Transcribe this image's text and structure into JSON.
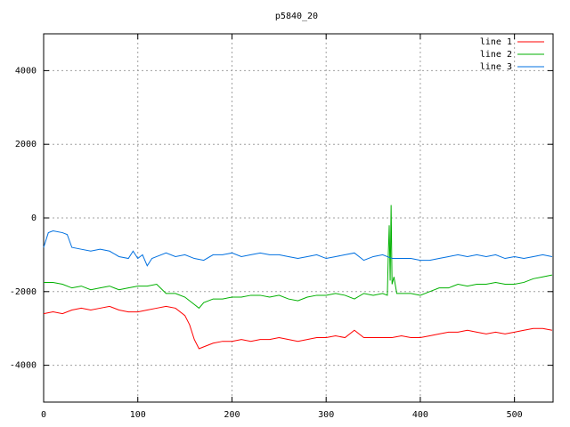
{
  "chart_data": {
    "type": "line",
    "title": "p5840_20",
    "xlim": [
      0,
      541
    ],
    "ylim": [
      -5000,
      5000
    ],
    "xticks": [
      0,
      100,
      200,
      300,
      400,
      500
    ],
    "yticks": [
      -4000,
      -2000,
      0,
      2000,
      4000
    ],
    "grid": true,
    "legend": "top-right",
    "series": [
      {
        "name": "line 1",
        "color": "#ff0000",
        "x": [
          0,
          10,
          20,
          30,
          40,
          50,
          60,
          70,
          80,
          90,
          100,
          110,
          120,
          130,
          140,
          150,
          155,
          160,
          165,
          170,
          180,
          190,
          200,
          210,
          220,
          230,
          240,
          250,
          260,
          270,
          280,
          290,
          300,
          310,
          320,
          330,
          340,
          350,
          360,
          370,
          380,
          390,
          400,
          410,
          420,
          430,
          440,
          450,
          460,
          470,
          480,
          490,
          500,
          510,
          520,
          530,
          540
        ],
        "values": [
          -2600,
          -2550,
          -2600,
          -2500,
          -2450,
          -2500,
          -2450,
          -2400,
          -2500,
          -2550,
          -2550,
          -2500,
          -2450,
          -2400,
          -2450,
          -2650,
          -2900,
          -3300,
          -3550,
          -3500,
          -3400,
          -3350,
          -3350,
          -3300,
          -3350,
          -3300,
          -3300,
          -3250,
          -3300,
          -3350,
          -3300,
          -3250,
          -3250,
          -3200,
          -3250,
          -3050,
          -3250,
          -3250,
          -3250,
          -3250,
          -3200,
          -3250,
          -3250,
          -3200,
          -3150,
          -3100,
          -3100,
          -3050,
          -3100,
          -3150,
          -3100,
          -3150,
          -3100,
          -3050,
          -3000,
          -3000,
          -3050
        ]
      },
      {
        "name": "line 2",
        "color": "#00b000",
        "x": [
          0,
          10,
          20,
          30,
          40,
          50,
          60,
          70,
          80,
          90,
          100,
          110,
          120,
          130,
          140,
          150,
          160,
          165,
          170,
          180,
          190,
          200,
          210,
          220,
          230,
          240,
          250,
          260,
          270,
          280,
          290,
          300,
          310,
          320,
          330,
          340,
          350,
          360,
          365,
          366,
          367,
          368,
          369,
          370,
          372,
          375,
          380,
          390,
          400,
          410,
          420,
          430,
          440,
          450,
          460,
          470,
          480,
          490,
          500,
          510,
          520,
          530,
          540
        ],
        "values": [
          -1750,
          -1750,
          -1800,
          -1900,
          -1850,
          -1950,
          -1900,
          -1850,
          -1950,
          -1900,
          -1850,
          -1850,
          -1800,
          -2050,
          -2050,
          -2150,
          -2350,
          -2450,
          -2300,
          -2200,
          -2200,
          -2150,
          -2150,
          -2100,
          -2100,
          -2150,
          -2100,
          -2200,
          -2250,
          -2150,
          -2100,
          -2100,
          -2050,
          -2100,
          -2200,
          -2050,
          -2100,
          -2050,
          -2100,
          -1000,
          -200,
          -1700,
          350,
          -1800,
          -1600,
          -2050,
          -2050,
          -2050,
          -2100,
          -2000,
          -1900,
          -1900,
          -1800,
          -1850,
          -1800,
          -1800,
          -1750,
          -1800,
          -1800,
          -1750,
          -1650,
          -1600,
          -1550
        ]
      },
      {
        "name": "line 3",
        "color": "#0070e0",
        "x": [
          0,
          5,
          10,
          20,
          25,
          30,
          40,
          50,
          60,
          70,
          80,
          90,
          95,
          100,
          105,
          110,
          115,
          120,
          130,
          140,
          150,
          160,
          170,
          180,
          190,
          200,
          210,
          220,
          230,
          240,
          250,
          260,
          270,
          280,
          290,
          300,
          310,
          320,
          330,
          340,
          350,
          360,
          370,
          380,
          390,
          400,
          410,
          420,
          430,
          440,
          450,
          460,
          470,
          480,
          490,
          500,
          510,
          520,
          530,
          540
        ],
        "values": [
          -800,
          -400,
          -350,
          -400,
          -450,
          -800,
          -850,
          -900,
          -850,
          -900,
          -1050,
          -1100,
          -900,
          -1100,
          -1000,
          -1300,
          -1100,
          -1050,
          -950,
          -1050,
          -1000,
          -1100,
          -1150,
          -1000,
          -1000,
          -950,
          -1050,
          -1000,
          -950,
          -1000,
          -1000,
          -1050,
          -1100,
          -1050,
          -1000,
          -1100,
          -1050,
          -1000,
          -950,
          -1150,
          -1050,
          -1000,
          -1100,
          -1100,
          -1100,
          -1150,
          -1150,
          -1100,
          -1050,
          -1000,
          -1050,
          -1000,
          -1050,
          -1000,
          -1100,
          -1050,
          -1100,
          -1050,
          -1000,
          -1050
        ]
      }
    ]
  }
}
